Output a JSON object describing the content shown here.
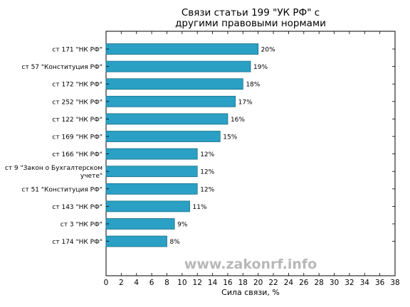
{
  "chart_data": {
    "type": "bar",
    "orientation": "horizontal",
    "title_lines": [
      "Связи статьи 199 \"УК РФ\" с",
      "другими правовыми нормами"
    ],
    "xlabel": "Сила связи, %",
    "ylabel": "",
    "xlim": [
      0,
      38
    ],
    "xticks": [
      0,
      2,
      4,
      6,
      8,
      10,
      12,
      14,
      16,
      18,
      20,
      22,
      24,
      26,
      28,
      30,
      32,
      34,
      36,
      38
    ],
    "grid": false,
    "legend": "none",
    "bar_color": "#2aa0c4",
    "bar_edge_color": "#1b6f88",
    "categories": [
      "ст 171 \"НК РФ\"",
      "ст 57 \"Конституция РФ\"",
      "ст 172 \"НК РФ\"",
      "ст 252 \"НК РФ\"",
      "ст 122 \"НК РФ\"",
      "ст 169 \"НК РФ\"",
      "ст 166 \"НК РФ\"",
      "ст 9 \"Закон о Бухгалтерском учете\"",
      "ст 51 \"Конституция РФ\"",
      "ст 143 \"НК РФ\"",
      "ст 3 \"НК РФ\"",
      "ст 174 \"НК РФ\""
    ],
    "values": [
      20,
      19,
      18,
      17,
      16,
      15,
      12,
      12,
      12,
      11,
      9,
      8
    ],
    "data_labels": [
      "20%",
      "19%",
      "18%",
      "17%",
      "16%",
      "15%",
      "12%",
      "12%",
      "12%",
      "11%",
      "9%",
      "8%"
    ]
  },
  "watermark": "www.zakonrf.info"
}
